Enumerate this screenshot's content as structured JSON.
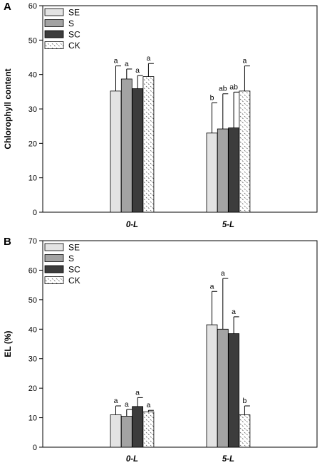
{
  "chart_data": [
    {
      "type": "bar",
      "panel": "A",
      "ylabel": "Chlorophyll content",
      "xlabel": "",
      "ylim": [
        0,
        60
      ],
      "yticks": [
        0,
        10,
        20,
        30,
        40,
        50,
        60
      ],
      "categories": [
        "0-L",
        "5-L"
      ],
      "grid": false,
      "legend_position": "top-left",
      "series": [
        {
          "name": "SE",
          "values": [
            35.2,
            23.0
          ],
          "errors": [
            7.3,
            8.8
          ],
          "letters": [
            "a",
            "b"
          ],
          "fill": "#e3e3e3",
          "pattern": "solid"
        },
        {
          "name": "S",
          "values": [
            38.7,
            24.2
          ],
          "errors": [
            2.9,
            10.2
          ],
          "letters": [
            "a",
            "ab"
          ],
          "fill": "#a3a3a3",
          "pattern": "solid"
        },
        {
          "name": "SC",
          "values": [
            35.9,
            24.5
          ],
          "errors": [
            3.8,
            10.4
          ],
          "letters": [
            "a",
            "ab"
          ],
          "fill": "#3c3c3c",
          "pattern": "solid"
        },
        {
          "name": "CK",
          "values": [
            39.4,
            35.2
          ],
          "errors": [
            3.8,
            7.3
          ],
          "letters": [
            "a",
            "a"
          ],
          "fill": "#ffffff",
          "pattern": "dotted"
        }
      ]
    },
    {
      "type": "bar",
      "panel": "B",
      "ylabel": "EL (%)",
      "xlabel": "",
      "ylim": [
        0,
        70
      ],
      "yticks": [
        0,
        10,
        20,
        30,
        40,
        50,
        60,
        70
      ],
      "categories": [
        "0-L",
        "5-L"
      ],
      "grid": false,
      "legend_position": "top-left",
      "series": [
        {
          "name": "SE",
          "values": [
            11.0,
            41.5
          ],
          "errors": [
            3.0,
            11.3
          ],
          "letters": [
            "a",
            "a"
          ],
          "fill": "#e3e3e3",
          "pattern": "solid"
        },
        {
          "name": "S",
          "values": [
            10.5,
            40.0
          ],
          "errors": [
            2.3,
            17.2
          ],
          "letters": [
            "a",
            "a"
          ],
          "fill": "#a3a3a3",
          "pattern": "solid"
        },
        {
          "name": "SC",
          "values": [
            13.8,
            38.5
          ],
          "errors": [
            3.0,
            5.7
          ],
          "letters": [
            "a",
            "a"
          ],
          "fill": "#3c3c3c",
          "pattern": "solid"
        },
        {
          "name": "CK",
          "values": [
            12.0,
            11.0
          ],
          "errors": [
            0.5,
            3.0
          ],
          "letters": [
            "a",
            "b"
          ],
          "fill": "#ffffff",
          "pattern": "dotted"
        }
      ]
    }
  ]
}
